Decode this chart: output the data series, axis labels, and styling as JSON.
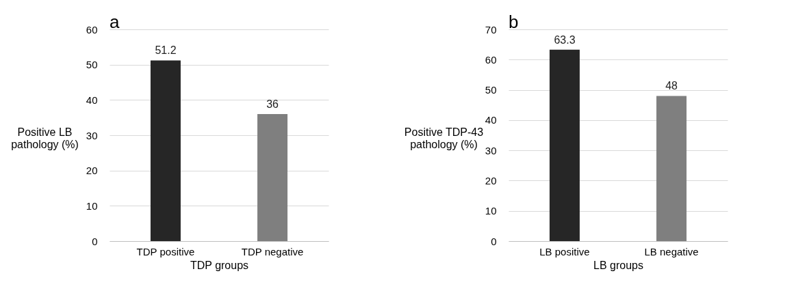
{
  "chart_data": [
    {
      "type": "bar",
      "title": "a",
      "categories": [
        "TDP positive",
        "TDP negative"
      ],
      "values": [
        51.2,
        36
      ],
      "colors": [
        "#262626",
        "#7f7f7f"
      ],
      "xlabel": "TDP groups",
      "ylabel": "Positive LB\npathology (%)",
      "ylim": [
        0,
        60
      ],
      "yticks": [
        0,
        10,
        20,
        30,
        40,
        50,
        60
      ],
      "grid": "y",
      "data_labels": true
    },
    {
      "type": "bar",
      "title": "b",
      "categories": [
        "LB positive",
        "LB negative"
      ],
      "values": [
        63.3,
        48
      ],
      "colors": [
        "#262626",
        "#7f7f7f"
      ],
      "xlabel": "LB groups",
      "ylabel": "Positive TDP-43\npathology (%)",
      "ylim": [
        0,
        70
      ],
      "yticks": [
        0,
        10,
        20,
        30,
        40,
        50,
        60,
        70
      ],
      "grid": "y",
      "data_labels": true
    }
  ]
}
